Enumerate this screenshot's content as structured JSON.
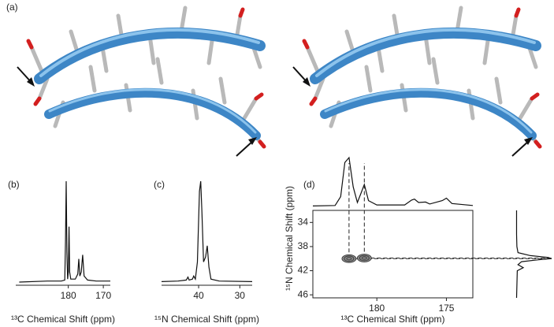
{
  "panel_a": {
    "label": "(a)"
  },
  "chart_data": [
    {
      "type": "line",
      "label": "(b)",
      "xlabel": "¹³C Chemical Shift (ppm)",
      "x": [
        194,
        186,
        182,
        181,
        180.8,
        180.6,
        180.4,
        180.2,
        180,
        179.8,
        179.6,
        179.3,
        178,
        177.3,
        177.0,
        176.7,
        176.3,
        175.9,
        175.5,
        174.5,
        172,
        168
      ],
      "values": [
        0,
        1,
        1,
        2,
        40,
        100,
        30,
        3,
        10,
        55,
        10,
        3,
        3,
        8,
        23,
        6,
        10,
        27,
        6,
        2,
        1,
        1
      ],
      "color": "#111111",
      "xlim": [
        195,
        168
      ],
      "xticks": [
        180,
        170
      ]
    },
    {
      "type": "line",
      "label": "(c)",
      "xlabel": "¹⁵N Chemical Shift (ppm)",
      "x": [
        49,
        45,
        43,
        42.6,
        42.3,
        41.5,
        41.2,
        40.8,
        40.3,
        39.8,
        39.5,
        39.2,
        38.8,
        38.3,
        37.9,
        37.5,
        37,
        35,
        27
      ],
      "values": [
        0.5,
        1,
        2,
        5,
        2,
        3,
        6,
        3,
        20,
        90,
        100,
        70,
        20,
        25,
        36,
        15,
        3,
        1,
        0.5
      ],
      "color": "#111111",
      "xlim": [
        49,
        27
      ],
      "xticks": [
        40,
        30
      ]
    },
    {
      "type": "contour",
      "label": "(d)",
      "xlabel": "¹³C Chemical Shift (ppm)",
      "ylabel": "¹⁵N Chemical Shift (ppm)",
      "xlim": [
        184.6,
        173.1
      ],
      "xticks": [
        180,
        175
      ],
      "ylim": [
        32,
        46.5
      ],
      "yticks": [
        34,
        38,
        42,
        46
      ],
      "peaks": {
        "x": [
          182.0,
          180.9
        ],
        "y": [
          40.0,
          39.9
        ]
      },
      "projection_x": {
        "x": [
          184.6,
          183,
          182.6,
          182.3,
          182.0,
          181.7,
          181.4,
          181.1,
          180.9,
          180.6,
          180,
          178,
          177.5,
          177.3,
          177.0,
          176.5,
          176.2,
          175.3,
          175,
          174.6,
          173.1
        ],
        "values": [
          1,
          2,
          20,
          90,
          100,
          40,
          8,
          30,
          45,
          12,
          3,
          3,
          13,
          15,
          8,
          9,
          5,
          12,
          17,
          6,
          2
        ]
      },
      "projection_y": {
        "y": [
          32,
          36,
          38,
          39,
          39.5,
          39.8,
          40,
          40.2,
          40.5,
          41,
          41.5,
          42,
          46.5
        ],
        "values": [
          1,
          1,
          2,
          5,
          40,
          90,
          100,
          60,
          15,
          5,
          20,
          3,
          1
        ]
      },
      "color": "#111111"
    }
  ]
}
